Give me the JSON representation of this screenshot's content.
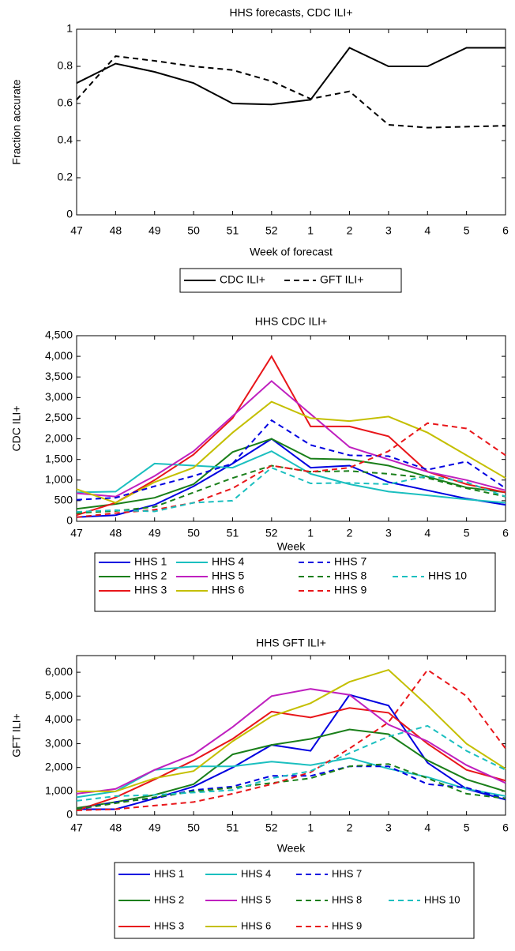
{
  "chart_data": [
    {
      "type": "line",
      "title": "HHS forecasts, CDC ILI+",
      "xlabel": "Week of forecast",
      "ylabel": "Fraction accurate",
      "categories": [
        "47",
        "48",
        "49",
        "50",
        "51",
        "52",
        "1",
        "2",
        "3",
        "4",
        "5",
        "6"
      ],
      "ylim": [
        0,
        1
      ],
      "yticks": [
        0,
        0.2,
        0.4,
        0.6,
        0.8,
        1
      ],
      "series": [
        {
          "name": "CDC ILI+",
          "color": "#000000",
          "style": "solid",
          "values": [
            0.71,
            0.815,
            0.77,
            0.71,
            0.6,
            0.595,
            0.62,
            0.9,
            0.8,
            0.8,
            0.9,
            0.9
          ]
        },
        {
          "name": "GFT ILI+",
          "color": "#000000",
          "style": "dashed",
          "values": [
            0.62,
            0.855,
            0.83,
            0.8,
            0.78,
            0.72,
            0.625,
            0.665,
            0.485,
            0.47,
            0.475,
            0.48
          ]
        }
      ]
    },
    {
      "type": "line",
      "title": "HHS CDC ILI+",
      "xlabel": "Week",
      "ylabel": "CDC ILI+",
      "categories": [
        "47",
        "48",
        "49",
        "50",
        "51",
        "52",
        "1",
        "2",
        "3",
        "4",
        "5",
        "6"
      ],
      "ylim": [
        0,
        4500
      ],
      "yticks": [
        0,
        500,
        {
          "value": 1000,
          "label": "1,000"
        },
        {
          "value": 1500,
          "label": "1,500"
        },
        {
          "value": 2000,
          "label": "2,000"
        },
        {
          "value": 2500,
          "label": "2,500"
        },
        {
          "value": 3000,
          "label": "3,000"
        },
        {
          "value": 3500,
          "label": "3,500"
        },
        {
          "value": 4000,
          "label": "4,000"
        },
        {
          "value": 4500,
          "label": "4,500"
        }
      ],
      "series": [
        {
          "name": "HHS 1",
          "color": "#0000e0",
          "style": "solid",
          "values": [
            100,
            150,
            400,
            850,
            1400,
            2000,
            1300,
            1350,
            950,
            750,
            550,
            400
          ]
        },
        {
          "name": "HHS 2",
          "color": "#1a7f1a",
          "style": "solid",
          "values": [
            300,
            420,
            570,
            900,
            1680,
            2000,
            1520,
            1500,
            1350,
            1080,
            820,
            700
          ]
        },
        {
          "name": "HHS 3",
          "color": "#e8161a",
          "style": "solid",
          "values": [
            150,
            450,
            1000,
            1620,
            2500,
            4000,
            2300,
            2300,
            2060,
            1200,
            900,
            700
          ]
        },
        {
          "name": "HHS 4",
          "color": "#1bbfbf",
          "style": "solid",
          "values": [
            700,
            720,
            1400,
            1350,
            1300,
            1700,
            1150,
            900,
            720,
            630,
            530,
            450
          ]
        },
        {
          "name": "HHS 5",
          "color": "#bf20bf",
          "style": "solid",
          "values": [
            680,
            600,
            1100,
            1700,
            2550,
            3400,
            2600,
            1800,
            1500,
            1200,
            1000,
            750
          ]
        },
        {
          "name": "HHS 6",
          "color": "#c4bf00",
          "style": "solid",
          "values": [
            780,
            450,
            950,
            1300,
            2150,
            2900,
            2500,
            2430,
            2540,
            2150,
            1600,
            1050
          ]
        },
        {
          "name": "HHS 7",
          "color": "#0000e0",
          "style": "dashed",
          "values": [
            520,
            570,
            850,
            1100,
            1400,
            2450,
            1850,
            1600,
            1580,
            1250,
            1450,
            800
          ]
        },
        {
          "name": "HHS 8",
          "color": "#1a7f1a",
          "style": "dashed",
          "values": [
            200,
            250,
            350,
            700,
            1050,
            1350,
            1200,
            1220,
            1150,
            1050,
            800,
            600
          ]
        },
        {
          "name": "HHS 9",
          "color": "#e8161a",
          "style": "dashed",
          "values": [
            100,
            200,
            280,
            450,
            800,
            1350,
            1200,
            1300,
            1700,
            2380,
            2250,
            1600
          ]
        },
        {
          "name": "HHS 10",
          "color": "#1bbfbf",
          "style": "dashed",
          "values": [
            230,
            270,
            240,
            450,
            500,
            1300,
            920,
            930,
            900,
            1100,
            950,
            600
          ]
        }
      ]
    },
    {
      "type": "line",
      "title": "HHS GFT ILI+",
      "xlabel": "Week",
      "ylabel": "GFT ILI+",
      "categories": [
        "47",
        "48",
        "49",
        "50",
        "51",
        "52",
        "1",
        "2",
        "3",
        "4",
        "5",
        "6"
      ],
      "ylim": [
        0,
        6700
      ],
      "yticks": [
        0,
        {
          "value": 1000,
          "label": "1,000"
        },
        {
          "value": 2000,
          "label": "2,000"
        },
        {
          "value": 3000,
          "label": "3,000"
        },
        {
          "value": 4000,
          "label": "4,000"
        },
        {
          "value": 5000,
          "label": "5,000"
        },
        {
          "value": 6000,
          "label": "6,000"
        }
      ],
      "series": [
        {
          "name": "HHS 1",
          "color": "#0000e0",
          "style": "solid",
          "values": [
            250,
            250,
            700,
            1200,
            2000,
            2950,
            2700,
            5050,
            4600,
            2200,
            1100,
            650
          ]
        },
        {
          "name": "HHS 2",
          "color": "#1a7f1a",
          "style": "solid",
          "values": [
            300,
            550,
            850,
            1300,
            2550,
            2950,
            3200,
            3600,
            3400,
            2300,
            1500,
            1000
          ]
        },
        {
          "name": "HHS 3",
          "color": "#e8161a",
          "style": "solid",
          "values": [
            200,
            750,
            1500,
            2300,
            3200,
            4350,
            4100,
            4500,
            4300,
            3000,
            1900,
            1450
          ]
        },
        {
          "name": "HHS 4",
          "color": "#1bbfbf",
          "style": "solid",
          "values": [
            750,
            1000,
            1900,
            2050,
            2050,
            2250,
            2100,
            2400,
            1950,
            1600,
            1100,
            800
          ]
        },
        {
          "name": "HHS 5",
          "color": "#bf20bf",
          "style": "solid",
          "values": [
            900,
            1100,
            1900,
            2550,
            3700,
            5000,
            5300,
            5050,
            3800,
            3100,
            2100,
            1350
          ]
        },
        {
          "name": "HHS 6",
          "color": "#c4bf00",
          "style": "solid",
          "values": [
            1000,
            1000,
            1550,
            1850,
            3100,
            4150,
            4700,
            5600,
            6100,
            4600,
            3000,
            1950
          ]
        },
        {
          "name": "HHS 7",
          "color": "#0000e0",
          "style": "dashed",
          "values": [
            250,
            550,
            700,
            1050,
            1200,
            1650,
            1650,
            2050,
            2050,
            1300,
            1150,
            700
          ]
        },
        {
          "name": "HHS 8",
          "color": "#1a7f1a",
          "style": "dashed",
          "values": [
            250,
            500,
            750,
            1000,
            1150,
            1350,
            1550,
            2050,
            2150,
            1550,
            900,
            700
          ]
        },
        {
          "name": "HHS 9",
          "color": "#e8161a",
          "style": "dashed",
          "values": [
            200,
            250,
            400,
            550,
            900,
            1300,
            1800,
            2800,
            3900,
            6100,
            5000,
            2800
          ]
        },
        {
          "name": "HHS 10",
          "color": "#1bbfbf",
          "style": "dashed",
          "values": [
            600,
            800,
            850,
            950,
            1050,
            1550,
            1850,
            2600,
            3300,
            3750,
            2700,
            1900
          ]
        }
      ]
    }
  ]
}
